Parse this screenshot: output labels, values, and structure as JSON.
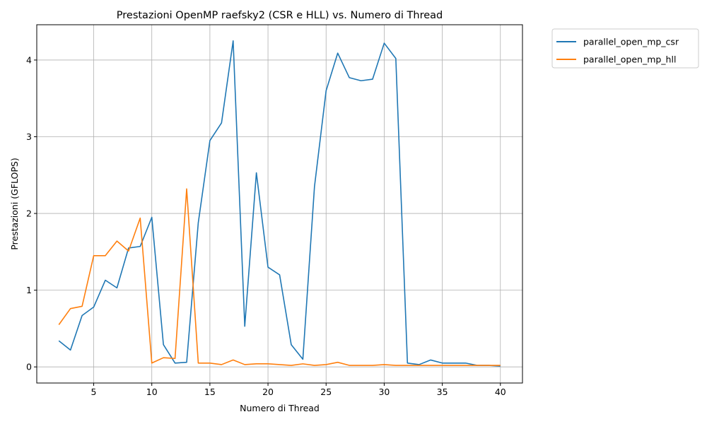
{
  "chart_data": {
    "type": "line",
    "title": "Prestazioni OpenMP raefsky2 (CSR e HLL) vs. Numero di Thread",
    "xlabel": "Numero di Thread",
    "ylabel": "Prestazioni (GFLOPS)",
    "xlim": [
      0.1,
      41.9
    ],
    "ylim": [
      -0.21,
      4.46
    ],
    "xticks": [
      5,
      10,
      15,
      20,
      25,
      30,
      35,
      40
    ],
    "yticks": [
      0,
      1,
      2,
      3,
      4
    ],
    "grid": true,
    "legend_position": "outside-right-top",
    "x": [
      2,
      3,
      4,
      5,
      6,
      7,
      8,
      9,
      10,
      11,
      12,
      13,
      14,
      15,
      16,
      17,
      18,
      19,
      20,
      21,
      22,
      23,
      24,
      25,
      26,
      27,
      28,
      29,
      30,
      31,
      32,
      33,
      34,
      35,
      36,
      37,
      38,
      39,
      40
    ],
    "series": [
      {
        "name": "parallel_open_mp_csr",
        "color": "#1f77b4",
        "values": [
          0.34,
          0.22,
          0.67,
          0.78,
          1.13,
          1.03,
          1.55,
          1.57,
          1.95,
          0.29,
          0.05,
          0.06,
          1.88,
          2.95,
          3.18,
          4.25,
          0.53,
          2.53,
          1.3,
          1.2,
          0.29,
          0.1,
          2.35,
          3.6,
          4.09,
          3.77,
          3.73,
          3.75,
          4.22,
          4.02,
          0.05,
          0.03,
          0.09,
          0.05,
          0.05,
          0.05,
          0.02,
          0.02,
          0.01
        ]
      },
      {
        "name": "parallel_open_mp_hll",
        "color": "#ff7f0e",
        "values": [
          0.55,
          0.76,
          0.79,
          1.45,
          1.45,
          1.64,
          1.51,
          1.94,
          0.05,
          0.12,
          0.11,
          2.32,
          0.05,
          0.05,
          0.03,
          0.09,
          0.03,
          0.04,
          0.04,
          0.03,
          0.02,
          0.04,
          0.02,
          0.03,
          0.06,
          0.02,
          0.02,
          0.02,
          0.03,
          0.02,
          0.02,
          0.02,
          0.02,
          0.02,
          0.02,
          0.02,
          0.02,
          0.02,
          0.02
        ]
      }
    ]
  }
}
